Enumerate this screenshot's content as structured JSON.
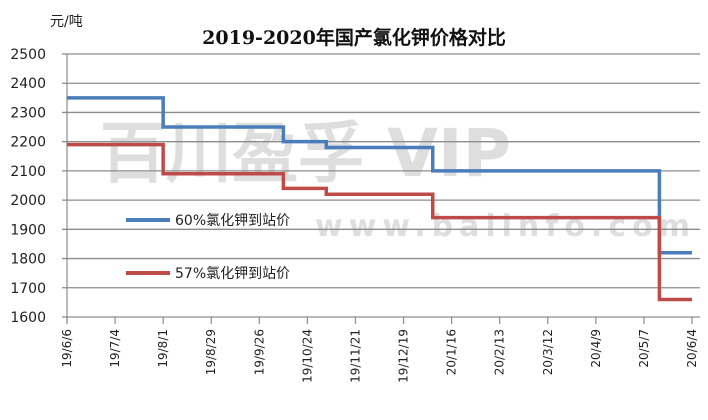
{
  "chart_data": {
    "type": "line",
    "step": true,
    "title": "2019-2020年国产氯化钾价格对比",
    "ylabel": "元/吨",
    "xlabel": "",
    "ylim": [
      1600,
      2500
    ],
    "yticks": [
      1600,
      1700,
      1800,
      1900,
      2000,
      2100,
      2200,
      2300,
      2400,
      2500
    ],
    "xlim": [
      "2019-06-06",
      "2020-06-04"
    ],
    "xticks": [
      "19/6/6",
      "19/7/4",
      "19/8/1",
      "19/8/29",
      "19/9/26",
      "19/10/24",
      "19/11/21",
      "19/12/19",
      "20/1/16",
      "20/2/13",
      "20/3/12",
      "20/4/9",
      "20/5/7",
      "20/6/4"
    ],
    "grid": true,
    "legend_position": "center-left",
    "series": [
      {
        "name": "60%氯化钾到站价",
        "color": "#4a7ebb",
        "points": [
          {
            "x": "2019-06-06",
            "y": 2350
          },
          {
            "x": "2019-08-01",
            "y": 2250
          },
          {
            "x": "2019-10-10",
            "y": 2200
          },
          {
            "x": "2019-11-04",
            "y": 2180
          },
          {
            "x": "2020-01-05",
            "y": 2100
          },
          {
            "x": "2020-05-16",
            "y": 1820
          },
          {
            "x": "2020-06-04",
            "y": 1820
          }
        ]
      },
      {
        "name": "57%氯化钾到站价",
        "color": "#be4b48",
        "points": [
          {
            "x": "2019-06-06",
            "y": 2190
          },
          {
            "x": "2019-08-01",
            "y": 2090
          },
          {
            "x": "2019-10-10",
            "y": 2040
          },
          {
            "x": "2019-11-04",
            "y": 2020
          },
          {
            "x": "2020-01-05",
            "y": 1940
          },
          {
            "x": "2020-05-16",
            "y": 1660
          },
          {
            "x": "2020-06-04",
            "y": 1660
          }
        ]
      }
    ]
  },
  "watermark": {
    "line1": "百川盈孚 VIP",
    "line2": "www.baiinfo.com"
  }
}
